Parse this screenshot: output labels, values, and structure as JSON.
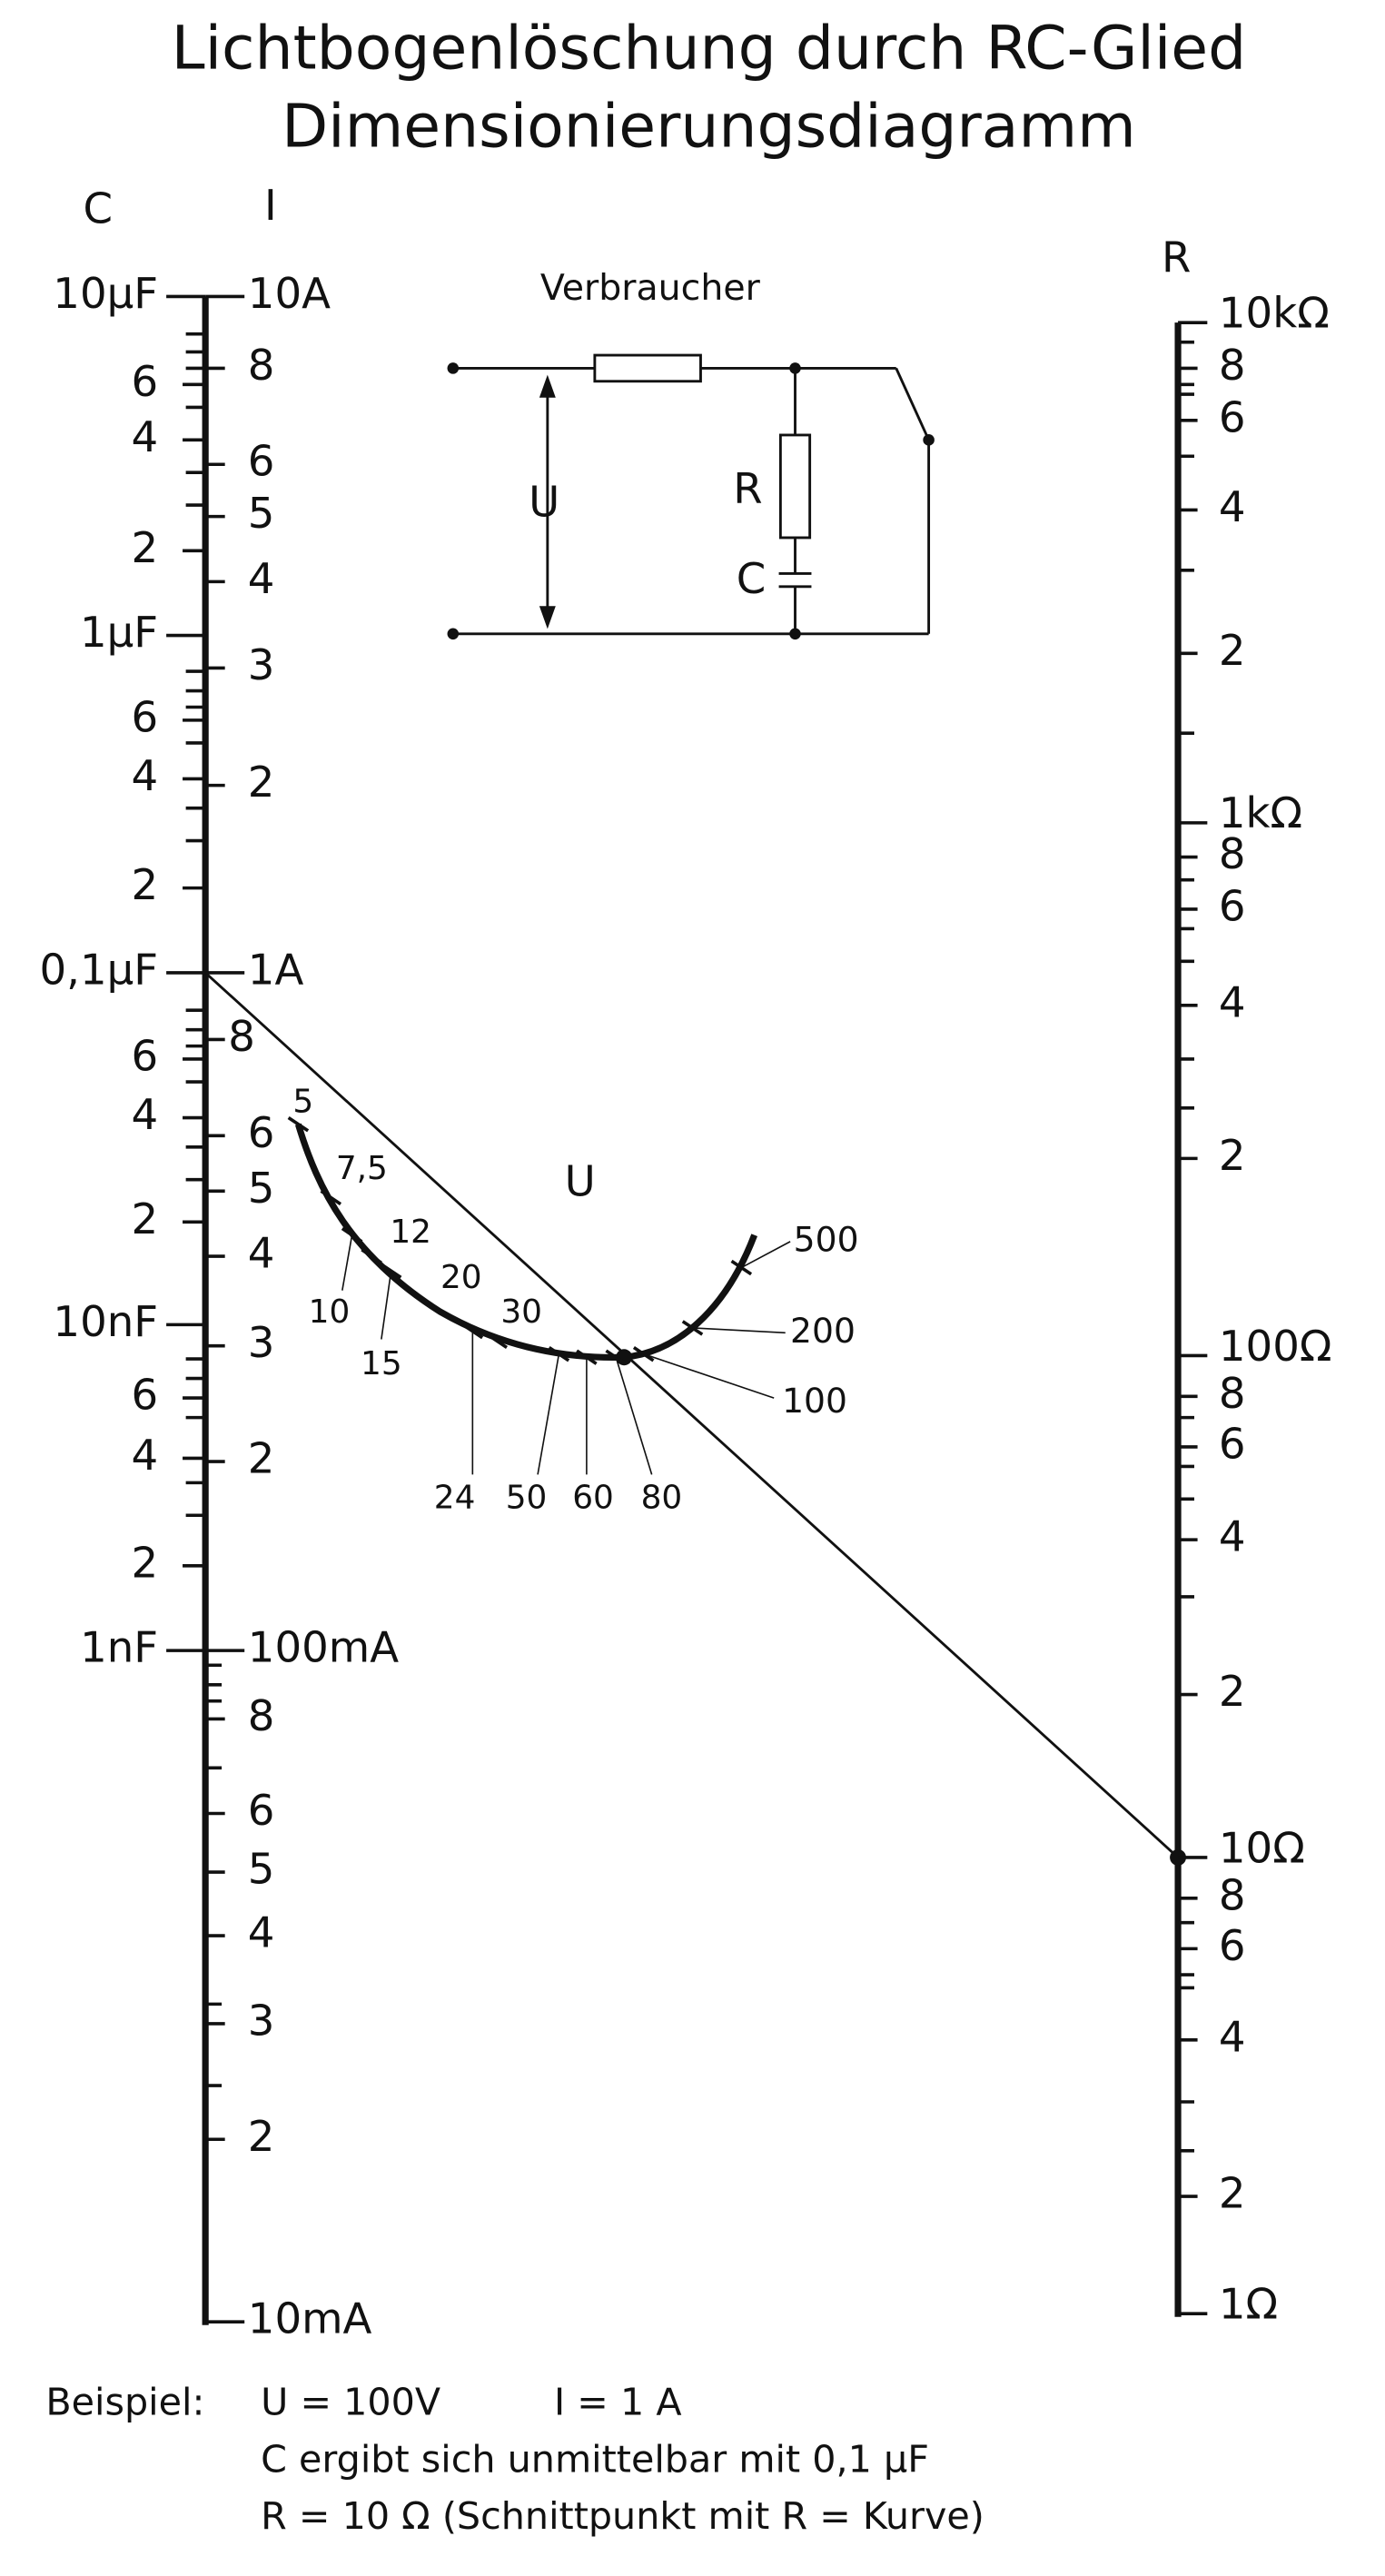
{
  "header": {
    "title": "Lichtbogenlöschung durch RC-Glied",
    "subtitle": "Dimensionierungsdiagramm"
  },
  "axes": {
    "c": {
      "name": "C",
      "labels": [
        "10µF",
        "6",
        "4",
        "2",
        "1µF",
        "6",
        "4",
        "2",
        "0,1µF",
        "6",
        "4",
        "2",
        "10nF",
        "6",
        "4",
        "2",
        "1nF"
      ]
    },
    "i": {
      "name": "I",
      "labels": [
        "10A",
        "8",
        "6",
        "5",
        "4",
        "3",
        "2",
        "1A",
        "8",
        "6",
        "5",
        "4",
        "3",
        "2",
        "100mA",
        "8",
        "6",
        "5",
        "4",
        "3",
        "2",
        "10mA"
      ]
    },
    "r": {
      "name": "R",
      "labels": [
        "10kΩ",
        "8",
        "6",
        "4",
        "2",
        "1kΩ",
        "8",
        "6",
        "4",
        "2",
        "100Ω",
        "8",
        "6",
        "4",
        "2",
        "10Ω",
        "8",
        "6",
        "4",
        "2",
        "1Ω"
      ]
    },
    "u": {
      "name": "U",
      "labels": [
        "5",
        "7,5",
        "10",
        "12",
        "15",
        "20",
        "24",
        "30",
        "50",
        "60",
        "80",
        "100",
        "200",
        "500"
      ]
    }
  },
  "circuit": {
    "load": "Verbraucher",
    "voltage": "U",
    "resistor": "R",
    "capacitor": "C"
  },
  "example": {
    "label": "Beispiel:",
    "lines": [
      "U = 100V",
      "I = 1 A",
      "C ergibt sich unmittelbar mit 0,1 µF",
      "R = 10 Ω (Schnittpunkt mit R = Kurve)"
    ]
  }
}
